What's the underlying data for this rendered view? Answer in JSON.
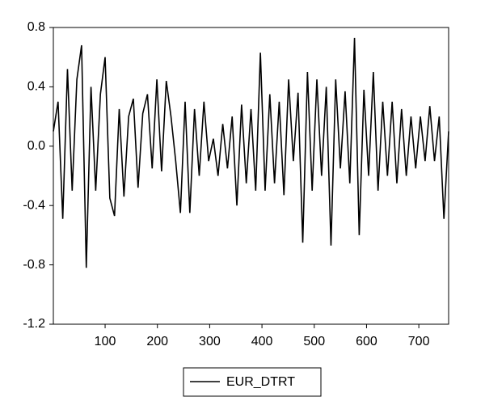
{
  "chart_data": {
    "type": "line",
    "x": [
      1,
      10,
      19,
      28,
      37,
      46,
      55,
      64,
      73,
      82,
      91,
      100,
      109,
      118,
      127,
      136,
      145,
      154,
      163,
      172,
      181,
      190,
      199,
      208,
      217,
      226,
      235,
      244,
      253,
      262,
      271,
      280,
      289,
      298,
      307,
      316,
      325,
      334,
      343,
      352,
      361,
      370,
      379,
      388,
      397,
      406,
      415,
      424,
      433,
      442,
      451,
      460,
      469,
      478,
      487,
      496,
      505,
      514,
      523,
      532,
      541,
      550,
      559,
      568,
      577,
      586,
      595,
      604,
      613,
      622,
      631,
      640,
      649,
      658,
      667,
      676,
      685,
      694,
      703,
      712,
      721,
      730,
      739,
      748,
      757
    ],
    "series": [
      {
        "name": "EUR_DTRT",
        "color": "#000000",
        "values": [
          0.1,
          0.3,
          -0.49,
          0.52,
          -0.3,
          0.45,
          0.68,
          -0.82,
          0.4,
          -0.3,
          0.35,
          0.6,
          -0.35,
          -0.47,
          0.25,
          -0.34,
          0.2,
          0.32,
          -0.28,
          0.22,
          0.35,
          -0.15,
          0.45,
          -0.17,
          0.44,
          0.2,
          -0.1,
          -0.45,
          0.3,
          -0.45,
          0.25,
          -0.2,
          0.3,
          -0.1,
          0.05,
          -0.2,
          0.15,
          -0.15,
          0.2,
          -0.4,
          0.28,
          -0.25,
          0.25,
          -0.3,
          0.63,
          -0.3,
          0.35,
          -0.25,
          0.3,
          -0.33,
          0.45,
          -0.1,
          0.36,
          -0.65,
          0.5,
          -0.3,
          0.45,
          -0.2,
          0.4,
          -0.67,
          0.45,
          -0.15,
          0.37,
          -0.25,
          0.73,
          -0.6,
          0.38,
          -0.2,
          0.5,
          -0.3,
          0.3,
          -0.2,
          0.3,
          -0.25,
          0.25,
          -0.2,
          0.2,
          -0.15,
          0.2,
          -0.1,
          0.27,
          -0.1,
          0.2,
          -0.49,
          0.1
        ]
      }
    ],
    "xlim": [
      1,
      757
    ],
    "xticks": [
      100,
      200,
      300,
      400,
      500,
      600,
      700
    ],
    "ylim": [
      -1.2,
      0.8
    ],
    "yticks": [
      -1.2,
      -0.8,
      -0.4,
      {
        "value": 0,
        "label": "0.0"
      },
      0.4,
      0.8
    ]
  }
}
